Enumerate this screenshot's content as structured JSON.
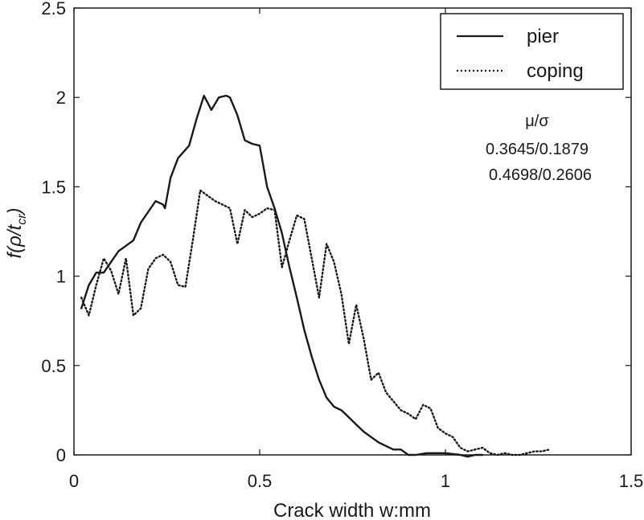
{
  "chart_data": {
    "type": "line",
    "title": "",
    "xlabel": "Crack width w:mm",
    "ylabel_main": "f(ρ/t",
    "ylabel_sub": "cr",
    "ylabel_close": ")",
    "xlim": [
      0,
      1.5
    ],
    "ylim": [
      0,
      2.5
    ],
    "xticks": [
      0,
      0.5,
      1,
      1.5
    ],
    "xtick_labels": [
      "0",
      "0.5",
      "1",
      "1.5"
    ],
    "yticks": [
      0,
      0.5,
      1,
      1.5,
      2,
      2.5
    ],
    "ytick_labels": [
      "0",
      "0.5",
      "1",
      "1.5",
      "2",
      "2.5"
    ],
    "grid": false,
    "legend_position": "top-right",
    "annotation": {
      "header": "μ/σ",
      "lines": [
        "0.3645/0.1879",
        "0.4698/0.2606"
      ]
    },
    "series": [
      {
        "name": "pier",
        "style": "solid",
        "color": "#1a1a1a",
        "x": [
          0.02,
          0.04,
          0.06,
          0.08,
          0.1,
          0.12,
          0.14,
          0.16,
          0.18,
          0.2,
          0.22,
          0.24,
          0.245,
          0.26,
          0.28,
          0.31,
          0.33,
          0.35,
          0.37,
          0.39,
          0.41,
          0.42,
          0.44,
          0.46,
          0.48,
          0.5,
          0.52,
          0.54,
          0.56,
          0.58,
          0.6,
          0.62,
          0.64,
          0.66,
          0.68,
          0.7,
          0.72,
          0.74,
          0.76,
          0.78,
          0.8,
          0.82,
          0.84,
          0.86,
          0.88,
          0.9,
          0.92,
          0.95,
          1.0,
          1.04,
          1.06,
          1.08,
          1.1
        ],
        "y": [
          0.82,
          0.95,
          1.02,
          1.02,
          1.08,
          1.14,
          1.17,
          1.2,
          1.3,
          1.36,
          1.42,
          1.4,
          1.38,
          1.55,
          1.66,
          1.73,
          1.88,
          2.01,
          1.93,
          2.0,
          2.01,
          2.0,
          1.9,
          1.76,
          1.74,
          1.73,
          1.5,
          1.38,
          1.24,
          1.05,
          0.88,
          0.7,
          0.55,
          0.42,
          0.32,
          0.27,
          0.25,
          0.21,
          0.17,
          0.13,
          0.1,
          0.07,
          0.05,
          0.03,
          0.03,
          0.0,
          0.0,
          0.01,
          0.01,
          0.0,
          -0.01,
          0.0,
          0.0
        ]
      },
      {
        "name": "coping",
        "style": "dotted",
        "color": "#1a1a1a",
        "x": [
          0.02,
          0.04,
          0.06,
          0.08,
          0.1,
          0.12,
          0.14,
          0.16,
          0.18,
          0.2,
          0.22,
          0.24,
          0.26,
          0.28,
          0.3,
          0.32,
          0.34,
          0.36,
          0.38,
          0.4,
          0.42,
          0.44,
          0.46,
          0.48,
          0.5,
          0.52,
          0.54,
          0.56,
          0.58,
          0.6,
          0.62,
          0.64,
          0.66,
          0.68,
          0.7,
          0.72,
          0.74,
          0.76,
          0.78,
          0.8,
          0.82,
          0.84,
          0.86,
          0.88,
          0.9,
          0.92,
          0.94,
          0.96,
          0.98,
          1.0,
          1.02,
          1.04,
          1.06,
          1.08,
          1.1,
          1.12,
          1.14,
          1.16,
          1.18,
          1.2,
          1.22,
          1.24,
          1.26,
          1.28
        ],
        "y": [
          0.88,
          0.78,
          0.95,
          1.1,
          1.03,
          0.9,
          1.1,
          0.78,
          0.82,
          1.04,
          1.1,
          1.12,
          1.08,
          0.95,
          0.94,
          1.2,
          1.48,
          1.45,
          1.42,
          1.4,
          1.38,
          1.18,
          1.37,
          1.33,
          1.35,
          1.38,
          1.37,
          1.05,
          1.2,
          1.34,
          1.32,
          1.1,
          0.88,
          1.18,
          1.08,
          0.9,
          0.62,
          0.84,
          0.65,
          0.42,
          0.46,
          0.35,
          0.3,
          0.25,
          0.23,
          0.2,
          0.28,
          0.26,
          0.15,
          0.12,
          0.1,
          0.04,
          0.02,
          0.03,
          0.04,
          0.01,
          0.0,
          0.01,
          0.0,
          0.0,
          0.01,
          0.02,
          0.02,
          0.03
        ]
      }
    ]
  }
}
